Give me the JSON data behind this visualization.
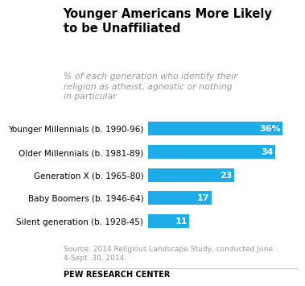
{
  "title": "Younger Americans More Likely\nto be Unaffiliated",
  "subtitle": "% of each generation who identify their\nreligion as atheist, agnostic or nothing\nin particular",
  "categories": [
    "Younger Millennials (b. 1990-96)",
    "Older Millennials (b. 1981-89)",
    "Generation X (b. 1965-80)",
    "Baby Boomers (b. 1946-64)",
    "Silent generation (b. 1928-45)"
  ],
  "values": [
    36,
    34,
    23,
    17,
    11
  ],
  "labels": [
    "36%",
    "34",
    "23",
    "17",
    "11"
  ],
  "bar_color": "#1DACE8",
  "text_color_inside": "#ffffff",
  "title_color": "#000000",
  "subtitle_color": "#999999",
  "source_text": "Source: 2014 Religious Landscape Study, conducted June\n4-Sept. 30, 2014.",
  "footer_text": "PEW RESEARCH CENTER",
  "background_color": "#ffffff",
  "xlim": [
    0,
    40
  ],
  "title_fontsize": 10.5,
  "subtitle_fontsize": 7.8,
  "bar_label_fontsize": 8,
  "category_fontsize": 7.5,
  "source_fontsize": 6.5,
  "footer_fontsize": 7.0
}
